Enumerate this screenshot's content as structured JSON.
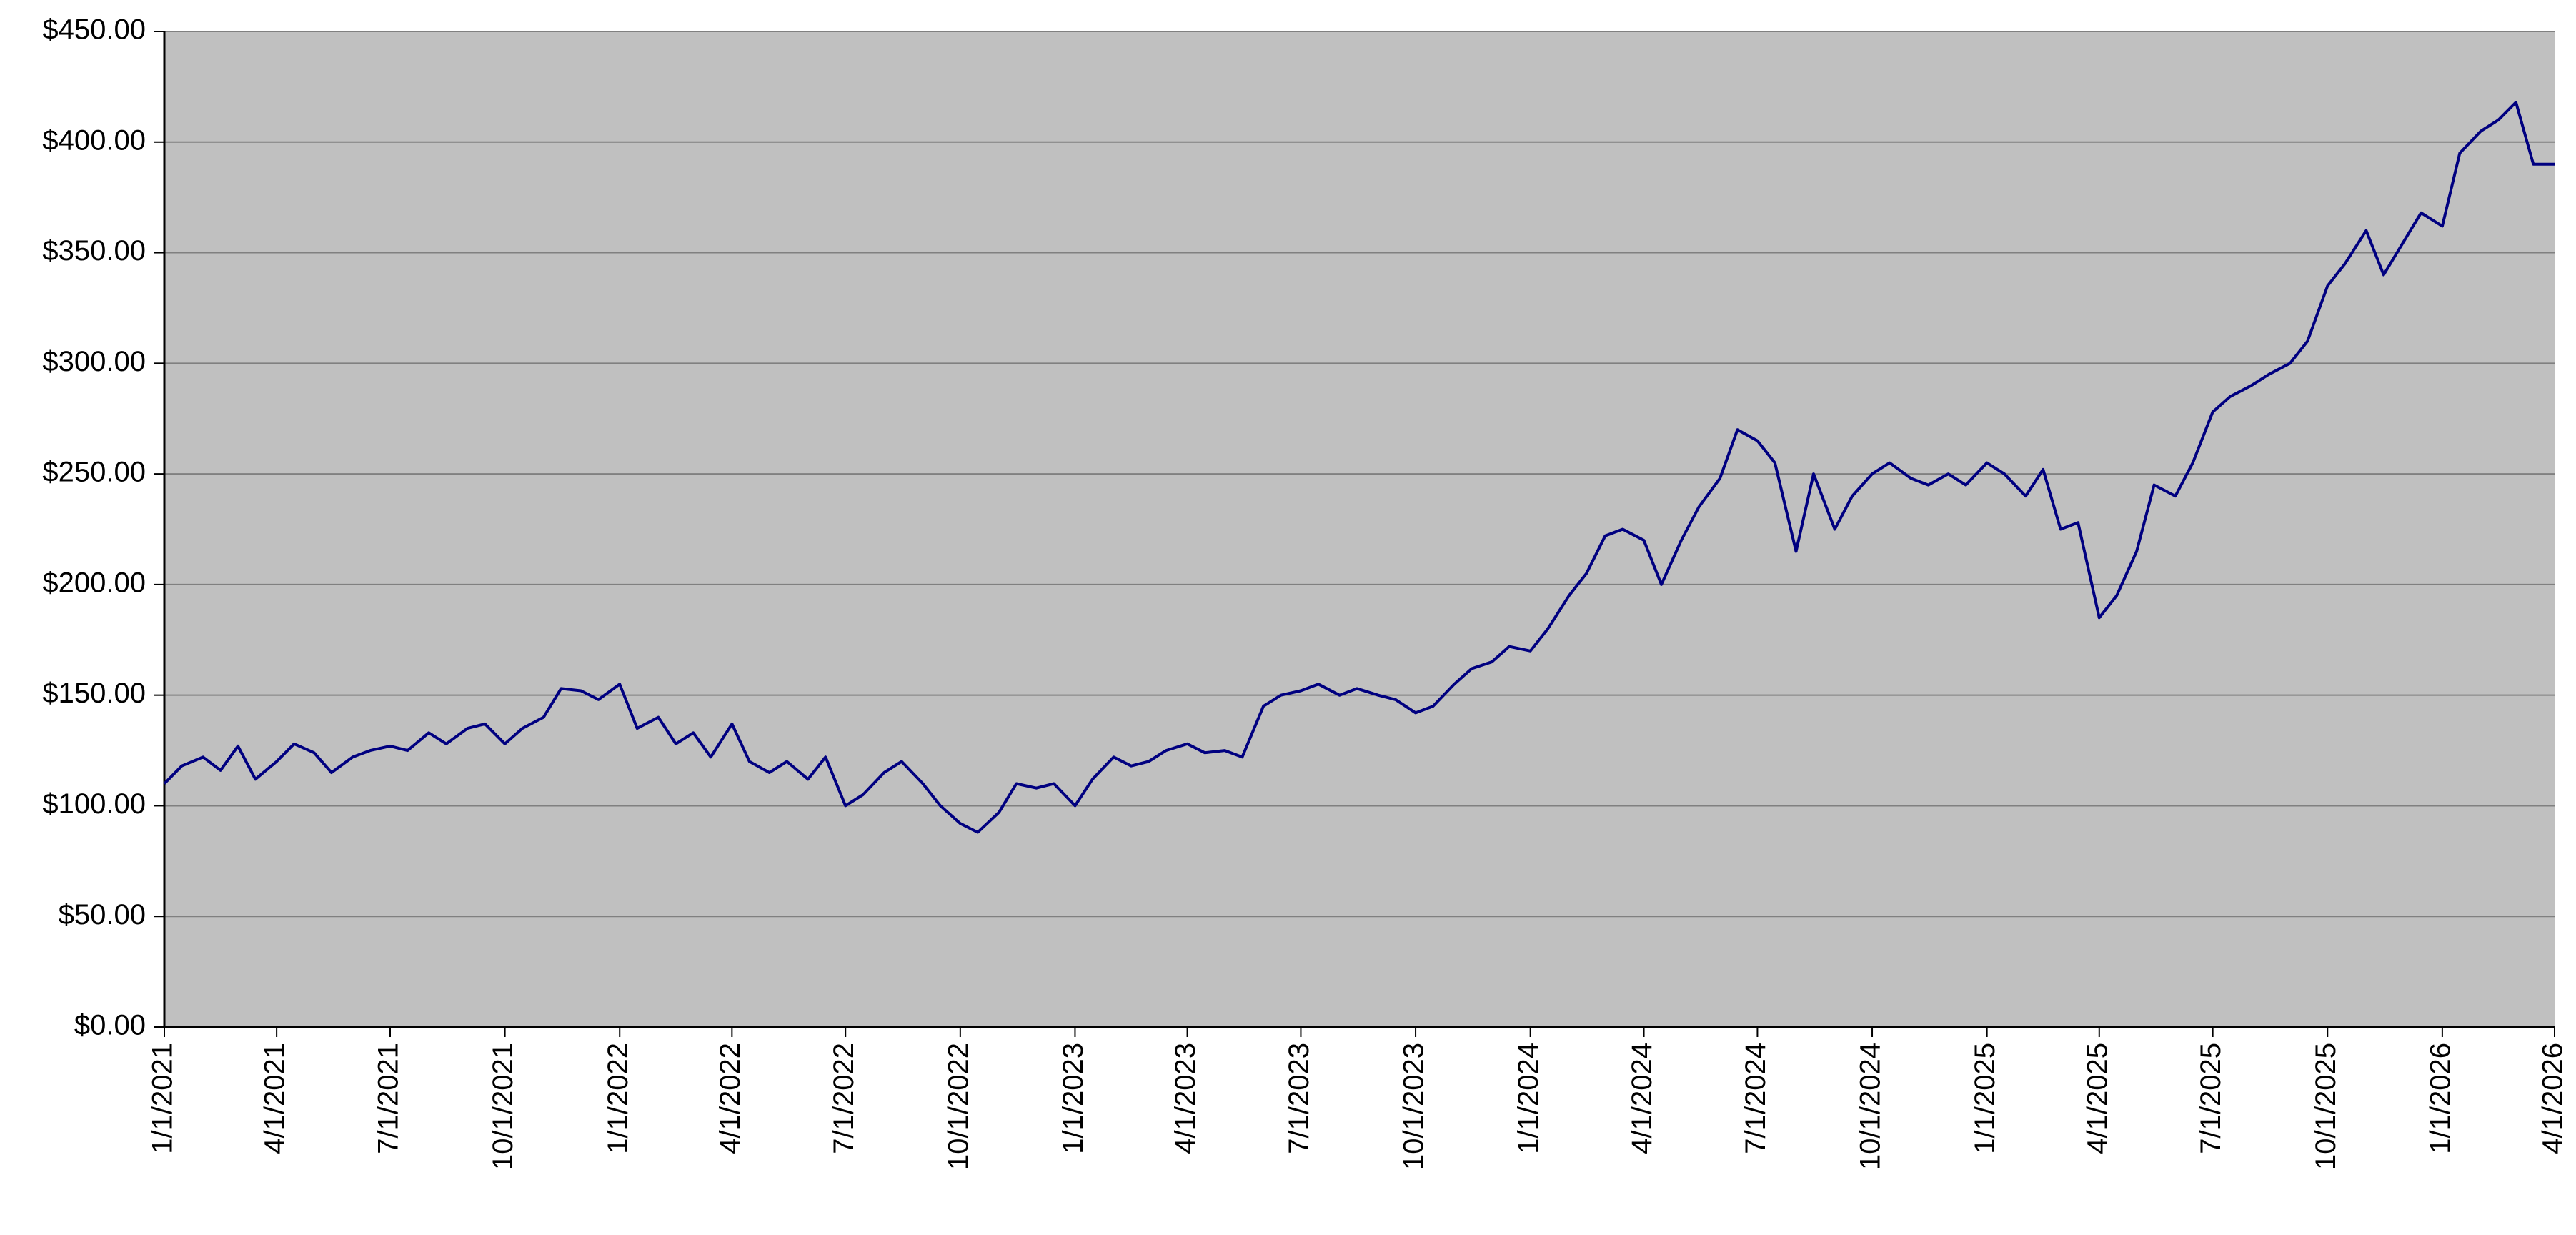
{
  "chart_data": {
    "type": "line",
    "x": [
      "1/1/2021",
      "1/15/2021",
      "2/1/2021",
      "2/15/2021",
      "3/1/2021",
      "3/15/2021",
      "4/1/2021",
      "4/15/2021",
      "5/1/2021",
      "5/15/2021",
      "6/1/2021",
      "6/15/2021",
      "7/1/2021",
      "7/15/2021",
      "8/1/2021",
      "8/15/2021",
      "9/1/2021",
      "9/15/2021",
      "10/1/2021",
      "10/15/2021",
      "11/1/2021",
      "11/15/2021",
      "12/1/2021",
      "12/15/2021",
      "1/1/2022",
      "1/15/2022",
      "2/1/2022",
      "2/15/2022",
      "3/1/2022",
      "3/15/2022",
      "4/1/2022",
      "4/15/2022",
      "5/1/2022",
      "5/15/2022",
      "6/1/2022",
      "6/15/2022",
      "7/1/2022",
      "7/15/2022",
      "8/1/2022",
      "8/15/2022",
      "9/1/2022",
      "9/15/2022",
      "10/1/2022",
      "10/15/2022",
      "11/1/2022",
      "11/15/2022",
      "12/1/2022",
      "12/15/2022",
      "1/1/2023",
      "1/15/2023",
      "2/1/2023",
      "2/15/2023",
      "3/1/2023",
      "3/15/2023",
      "4/1/2023",
      "4/15/2023",
      "5/1/2023",
      "5/15/2023",
      "6/1/2023",
      "6/15/2023",
      "7/1/2023",
      "7/15/2023",
      "8/1/2023",
      "8/15/2023",
      "9/1/2023",
      "9/15/2023",
      "10/1/2023",
      "10/15/2023",
      "11/1/2023",
      "11/15/2023",
      "12/1/2023",
      "12/15/2023",
      "1/1/2024",
      "1/15/2024",
      "2/1/2024",
      "2/15/2024",
      "3/1/2024",
      "3/15/2024",
      "4/1/2024",
      "4/15/2024",
      "5/1/2024",
      "5/15/2024",
      "6/1/2024",
      "6/15/2024",
      "7/1/2024",
      "7/15/2024",
      "8/1/2024",
      "8/15/2024",
      "9/1/2024",
      "9/15/2024",
      "10/1/2024",
      "10/15/2024",
      "11/1/2024",
      "11/15/2024",
      "12/1/2024",
      "12/15/2024",
      "1/1/2025",
      "1/15/2025",
      "2/1/2025",
      "2/15/2025",
      "3/1/2025",
      "3/15/2025",
      "4/1/2025",
      "4/15/2025",
      "5/1/2025",
      "5/15/2025",
      "6/1/2025",
      "6/15/2025",
      "7/1/2025",
      "7/15/2025",
      "8/1/2025",
      "8/15/2025",
      "9/1/2025",
      "9/15/2025",
      "10/1/2025",
      "10/15/2025",
      "11/1/2025",
      "11/15/2025",
      "12/1/2025",
      "12/15/2025",
      "1/1/2026",
      "1/15/2026",
      "2/1/2026",
      "2/15/2026",
      "3/1/2026",
      "3/15/2026",
      "4/1/2026"
    ],
    "series": [
      {
        "color": "#000080",
        "values": [
          110,
          118,
          122,
          116,
          127,
          112,
          120,
          128,
          124,
          115,
          122,
          125,
          127,
          125,
          133,
          128,
          135,
          137,
          128,
          135,
          140,
          153,
          152,
          148,
          155,
          135,
          140,
          128,
          133,
          122,
          137,
          120,
          115,
          120,
          112,
          122,
          100,
          105,
          115,
          120,
          110,
          100,
          92,
          88,
          97,
          110,
          108,
          110,
          100,
          112,
          122,
          118,
          120,
          125,
          128,
          124,
          125,
          122,
          145,
          150,
          152,
          155,
          150,
          153,
          150,
          148,
          142,
          145,
          155,
          162,
          165,
          172,
          170,
          180,
          195,
          205,
          222,
          225,
          220,
          200,
          220,
          235,
          248,
          270,
          265,
          255,
          215,
          250,
          225,
          240,
          250,
          255,
          248,
          245,
          250,
          245,
          255,
          250,
          240,
          252,
          225,
          228,
          185,
          195,
          215,
          245,
          240,
          255,
          278,
          285,
          290,
          295,
          300,
          310,
          335,
          345,
          360,
          340,
          355,
          368,
          362,
          395,
          405,
          410,
          418,
          390,
          390
        ]
      }
    ],
    "xlim": [
      "1/1/2021",
      "4/1/2026"
    ],
    "xticks": [
      "1/1/2021",
      "4/1/2021",
      "7/1/2021",
      "10/1/2021",
      "1/1/2022",
      "4/1/2022",
      "7/1/2022",
      "10/1/2022",
      "1/1/2023",
      "4/1/2023",
      "7/1/2023",
      "10/1/2023",
      "1/1/2024",
      "4/1/2024",
      "7/1/2024",
      "10/1/2024",
      "1/1/2025",
      "4/1/2025",
      "7/1/2025",
      "10/1/2025",
      "1/1/2026",
      "4/1/2026"
    ],
    "ylim": [
      0,
      450
    ],
    "yticks": [
      {
        "value": 0,
        "label": "$0.00"
      },
      {
        "value": 50,
        "label": "$50.00"
      },
      {
        "value": 100,
        "label": "$100.00"
      },
      {
        "value": 150,
        "label": "$150.00"
      },
      {
        "value": 200,
        "label": "$200.00"
      },
      {
        "value": 250,
        "label": "$250.00"
      },
      {
        "value": 300,
        "label": "$300.00"
      },
      {
        "value": 350,
        "label": "$350.00"
      },
      {
        "value": 400,
        "label": "$400.00"
      },
      {
        "value": 450,
        "label": "$450.00"
      }
    ],
    "grid": true,
    "plot_background": "#c0c0c0"
  }
}
